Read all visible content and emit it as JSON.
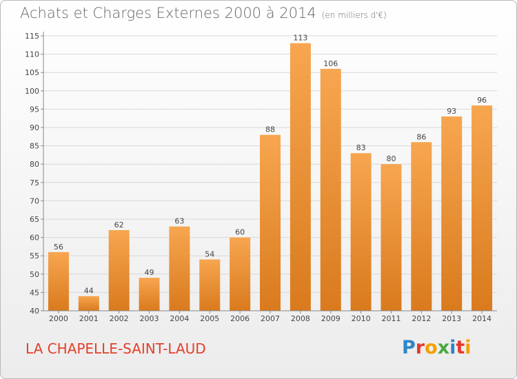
{
  "header": {
    "title": "Achats et Charges Externes 2000 à 2014",
    "unit": "(en milliers d'€)"
  },
  "footer": {
    "commune": "LA CHAPELLE-SAINT-LAUD",
    "logo_text": "Proxiti"
  },
  "colors": {
    "bar_light": "#f7a650",
    "bar_dark": "#d97a1d",
    "commune": "#e2402b"
  },
  "chart_data": {
    "type": "bar",
    "categories": [
      "2000",
      "2001",
      "2002",
      "2003",
      "2004",
      "2005",
      "2006",
      "2007",
      "2008",
      "2009",
      "2010",
      "2011",
      "2012",
      "2013",
      "2014"
    ],
    "values": [
      56,
      44,
      62,
      49,
      63,
      54,
      60,
      88,
      113,
      106,
      83,
      80,
      86,
      93,
      96
    ],
    "ylim": [
      40,
      115
    ],
    "yticks": [
      40,
      45,
      50,
      55,
      60,
      65,
      70,
      75,
      80,
      85,
      90,
      95,
      100,
      105,
      110,
      115
    ],
    "grid": true,
    "data_labels": true
  }
}
